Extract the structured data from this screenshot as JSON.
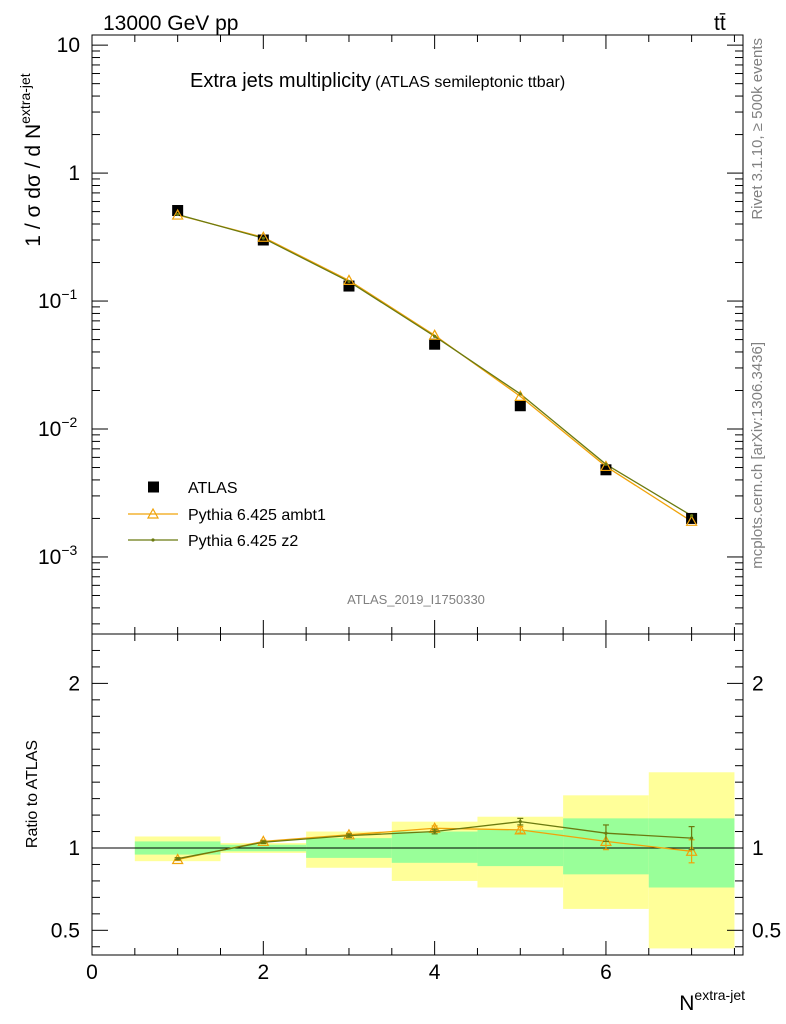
{
  "header": {
    "energy_label": "13000 GeV pp",
    "process_label": "tt̄"
  },
  "side_labels": {
    "rivet": "Rivet 3.1.10, ≥ 500k events",
    "mcplots": "mcplots.cern.ch [arXiv:1306.3436]"
  },
  "chart_data": [
    {
      "type": "line",
      "panel": "main",
      "title": "Extra jets multiplicity",
      "subtitle": "(ATLAS semileptonic ttbar)",
      "watermark": "ATLAS_2019_I1750330",
      "ylabel": "1 / σ dσ / d N^extra-jet",
      "yscale": "log",
      "ylim": [
        0.00025,
        12
      ],
      "xlim": [
        0,
        7.6
      ],
      "y_ticks": [
        {
          "value": 10,
          "label": "10"
        },
        {
          "value": 1,
          "label": "1"
        },
        {
          "value": 0.1,
          "base": "10",
          "exp": "−1"
        },
        {
          "value": 0.01,
          "base": "10",
          "exp": "−2"
        },
        {
          "value": 0.001,
          "base": "10",
          "exp": "−3"
        }
      ],
      "legend": "lower-left",
      "x": [
        1,
        2,
        3,
        4,
        5,
        6,
        7
      ],
      "series": [
        {
          "name": "ATLAS",
          "marker": "square",
          "color": "#000000",
          "values": [
            0.51,
            0.3,
            0.131,
            0.046,
            0.0152,
            0.0048,
            0.002
          ]
        },
        {
          "name": "Pythia 6.425 ambt1",
          "marker": "triangle",
          "color": "#f0a30a",
          "values": [
            0.47,
            0.315,
            0.145,
            0.054,
            0.018,
            0.0051,
            0.0019
          ]
        },
        {
          "name": "Pythia 6.425 z2",
          "marker": "dot",
          "color": "#6b7a10",
          "values": [
            0.475,
            0.31,
            0.142,
            0.053,
            0.0188,
            0.0053,
            0.0021
          ]
        }
      ]
    },
    {
      "type": "line",
      "panel": "ratio",
      "ylabel": "Ratio to ATLAS",
      "xlabel": "N^extra-jet",
      "ylim": [
        0.35,
        2.3
      ],
      "xlim": [
        0,
        7.6
      ],
      "x_ticks": [
        0,
        2,
        4,
        6
      ],
      "y_ticks": [
        0.5,
        1,
        2
      ],
      "x": [
        1,
        2,
        3,
        4,
        5,
        6,
        7
      ],
      "bands": {
        "bins": [
          [
            0.5,
            1.5
          ],
          [
            1.5,
            2.5
          ],
          [
            2.5,
            3.5
          ],
          [
            3.5,
            4.5
          ],
          [
            4.5,
            5.5
          ],
          [
            5.5,
            6.5
          ],
          [
            6.5,
            7.5
          ]
        ],
        "yellow": [
          [
            0.92,
            1.07
          ],
          [
            0.97,
            1.03
          ],
          [
            0.88,
            1.1
          ],
          [
            0.8,
            1.16
          ],
          [
            0.76,
            1.19
          ],
          [
            0.63,
            1.32
          ],
          [
            0.39,
            1.46
          ]
        ],
        "green": [
          [
            0.96,
            1.04
          ],
          [
            0.98,
            1.02
          ],
          [
            0.94,
            1.06
          ],
          [
            0.91,
            1.1
          ],
          [
            0.89,
            1.11
          ],
          [
            0.84,
            1.18
          ],
          [
            0.76,
            1.18
          ]
        ],
        "colors": {
          "yellow": "#ffff99",
          "green": "#99ff99"
        }
      },
      "series": [
        {
          "name": "Pythia 6.425 ambt1",
          "color": "#f0a30a",
          "values": [
            0.93,
            1.04,
            1.08,
            1.12,
            1.11,
            1.04,
            0.98
          ],
          "err": [
            0.006,
            0.008,
            0.01,
            0.014,
            0.02,
            0.05,
            0.07
          ]
        },
        {
          "name": "Pythia 6.425 z2",
          "color": "#6b7a10",
          "values": [
            0.935,
            1.035,
            1.075,
            1.1,
            1.16,
            1.09,
            1.06
          ],
          "err": [
            0.006,
            0.008,
            0.01,
            0.014,
            0.02,
            0.05,
            0.07
          ]
        }
      ]
    }
  ]
}
